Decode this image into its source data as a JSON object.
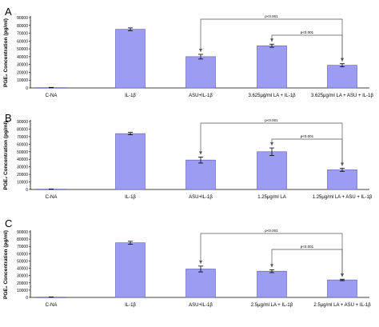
{
  "colors": {
    "bar_fill": "#9c9cf2",
    "bar_stroke": "#5a5ab0",
    "axis": "#000000",
    "bracket": "#555555",
    "error_bar": "#000000"
  },
  "chart_data": [
    {
      "panel": "A",
      "type": "bar",
      "ylabel": "PGE₂ Concentration (pg/ml)",
      "ylim": [
        0,
        90000
      ],
      "yticks": [
        "0",
        "10000",
        "20000",
        "30000",
        "40000",
        "50000",
        "60000",
        "70000",
        "80000",
        "90000"
      ],
      "categories": [
        "C-NA",
        "IL-1β",
        "ASU+IL-1β",
        "3.625μg/ml LA + IL-1β",
        "3.625μg/ml LA + ASU + IL-1β"
      ],
      "values": [
        500,
        75000,
        40000,
        54000,
        29000
      ],
      "errors": [
        200,
        1800,
        3000,
        2000,
        2000
      ],
      "brackets": [
        {
          "from": 2,
          "to": 4,
          "label": "p<0.001"
        },
        {
          "from": 3,
          "to": 4,
          "label": "p<0.001"
        }
      ],
      "grid": false
    },
    {
      "panel": "B",
      "type": "bar",
      "ylabel": "PGE₂ Concentration (pg/ml)",
      "ylim": [
        0,
        90000
      ],
      "yticks": [
        "0",
        "10000",
        "20000",
        "30000",
        "40000",
        "50000",
        "60000",
        "70000",
        "80000",
        "90000"
      ],
      "categories": [
        "C-NA",
        "IL-1β",
        "ASU+IL-1β",
        "1.25μg/ml LA",
        "1.25μg/ml LA + ASU + IL-1β"
      ],
      "values": [
        500,
        74000,
        39000,
        50000,
        26000
      ],
      "errors": [
        200,
        1500,
        4000,
        5000,
        2000
      ],
      "brackets": [
        {
          "from": 2,
          "to": 4,
          "label": "p<0.001"
        },
        {
          "from": 3,
          "to": 4,
          "label": "p<0.001"
        }
      ],
      "grid": false
    },
    {
      "panel": "C",
      "type": "bar",
      "ylabel": "PGE₂ Concentration (pg/ml)",
      "ylim": [
        0,
        90000
      ],
      "yticks": [
        "0",
        "10000",
        "20000",
        "30000",
        "40000",
        "50000",
        "60000",
        "70000",
        "80000",
        "90000"
      ],
      "categories": [
        "C-NA",
        "IL-1β",
        "ASU+IL-1β",
        "2.5μg/ml LA + IL-1β",
        "2.5μg/ml LA + ASU + IL-1β"
      ],
      "values": [
        500,
        75000,
        39000,
        36000,
        24000
      ],
      "errors": [
        200,
        2000,
        4000,
        2000,
        1000
      ],
      "brackets": [
        {
          "from": 2,
          "to": 4,
          "label": "p<0.001"
        },
        {
          "from": 3,
          "to": 4,
          "label": "p<0.001"
        }
      ],
      "grid": false
    }
  ]
}
